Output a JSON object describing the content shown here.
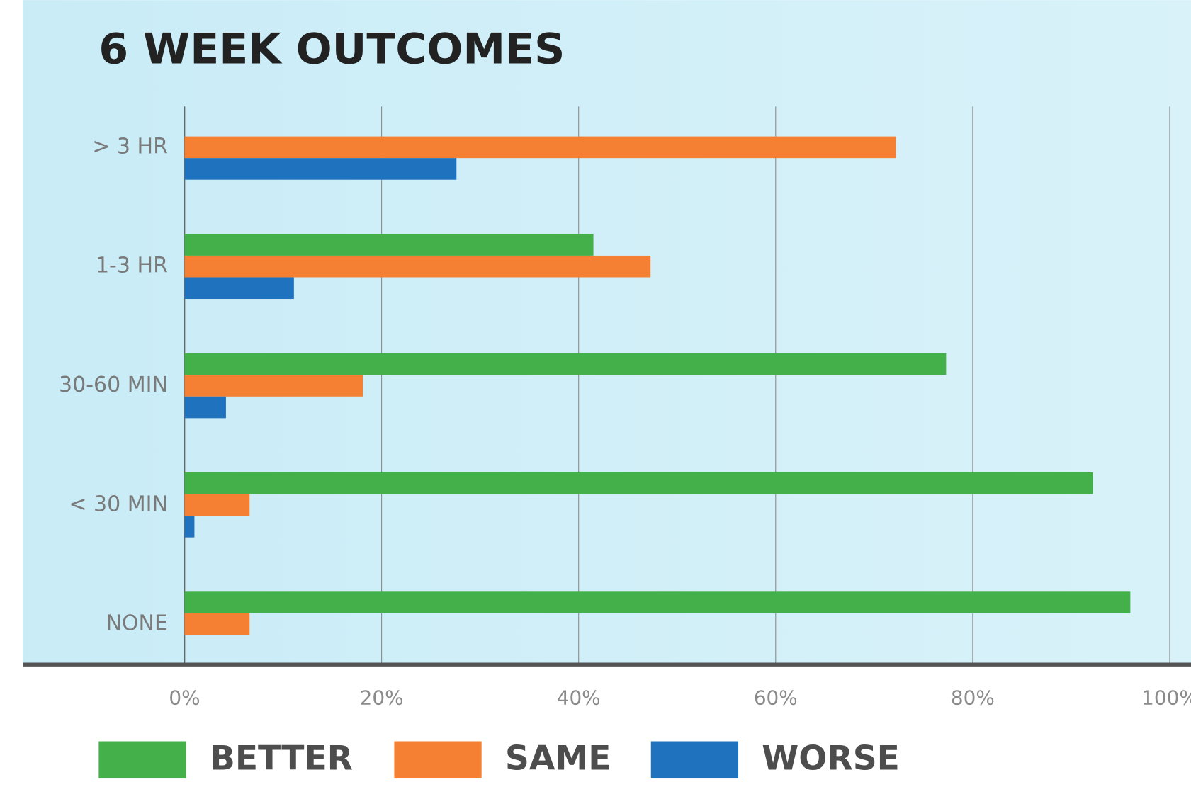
{
  "chart_data": {
    "type": "bar",
    "orientation": "horizontal",
    "title": "6 WEEK OUTCOMES",
    "categories": [
      "> 3 HR",
      "1-3 HR",
      "30-60 MIN",
      "< 30 MIN",
      "NONE"
    ],
    "series": [
      {
        "name": "BETTER",
        "color": "#43b049",
        "values": [
          null,
          41.5,
          77.3,
          92.2,
          96.0
        ]
      },
      {
        "name": "SAME",
        "color": "#f58033",
        "values": [
          72.2,
          47.3,
          18.1,
          6.6,
          6.6
        ]
      },
      {
        "name": "WORSE",
        "color": "#1f72bd",
        "values": [
          27.6,
          11.1,
          4.2,
          1.0,
          null
        ]
      }
    ],
    "xlim": [
      0,
      100
    ],
    "xticks": [
      {
        "value": 0,
        "label": "0%"
      },
      {
        "value": 20,
        "label": "20%"
      },
      {
        "value": 40,
        "label": "40%"
      },
      {
        "value": 60,
        "label": "60%"
      },
      {
        "value": 80,
        "label": "80%"
      },
      {
        "value": 100,
        "label": "100%"
      }
    ],
    "grid": true
  }
}
